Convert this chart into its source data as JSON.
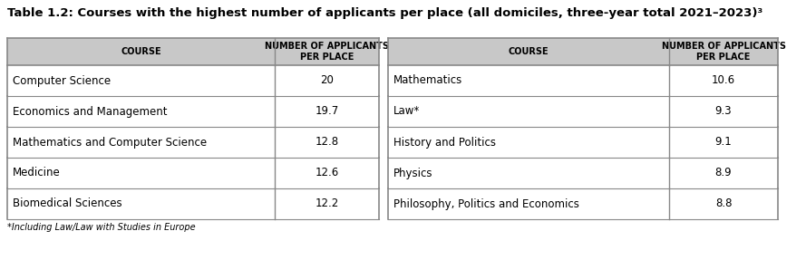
{
  "title": "Table 1.2: Courses with the highest number of applicants per place (all domiciles, three-year total 2021–2023)³",
  "left_table": {
    "header": [
      "COURSE",
      "NUMBER OF APPLICANTS\nPER PLACE"
    ],
    "rows": [
      [
        "Computer Science",
        "20"
      ],
      [
        "Economics and Management",
        "19.7"
      ],
      [
        "Mathematics and Computer Science",
        "12.8"
      ],
      [
        "Medicine",
        "12.6"
      ],
      [
        "Biomedical Sciences",
        "12.2"
      ]
    ]
  },
  "right_table": {
    "header": [
      "COURSE",
      "NUMBER OF APPLICANTS\nPER PLACE"
    ],
    "rows": [
      [
        "Mathematics",
        "10.6"
      ],
      [
        "Law*",
        "9.3"
      ],
      [
        "History and Politics",
        "9.1"
      ],
      [
        "Physics",
        "8.9"
      ],
      [
        "Philosophy, Politics and Economics",
        "8.8"
      ]
    ]
  },
  "footnote": "*Including Law/Law with Studies in Europe",
  "header_bg": "#c8c8c8",
  "border_color": "#888888",
  "text_color": "#000000",
  "title_color": "#000000",
  "font_size": 8.5,
  "header_font_size": 7,
  "title_font_size": 9.5,
  "footnote_font_size": 7
}
